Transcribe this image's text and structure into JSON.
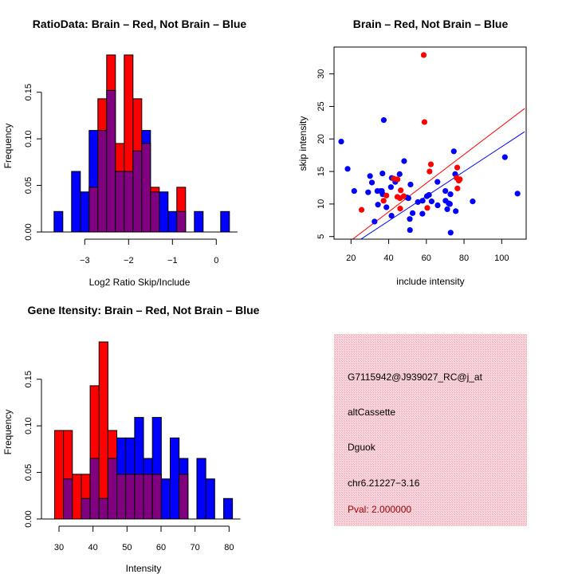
{
  "colors": {
    "red": "#ff0000",
    "blue": "#0000ff",
    "overlap": "#800080",
    "panel": "#f2c4cf",
    "pval": "#a00000"
  },
  "chart_data": [
    {
      "type": "bar",
      "title": "RatioData: Brain – Red, Not Brain – Blue",
      "xlabel": "Log2 Ratio Skip/Include",
      "ylabel": "Frequency",
      "bin_start": -3.7,
      "bin_width": 0.2,
      "xticks": [
        -3,
        -2,
        -1,
        0
      ],
      "xtick_labels": [
        "−3",
        "−2",
        "−1",
        "0"
      ],
      "yticks": [
        0,
        0.05,
        0.1,
        0.15
      ],
      "ytick_labels": [
        "0.00",
        "0.05",
        "0.10",
        "0.15"
      ],
      "series": [
        {
          "name": "Brain",
          "color": "red",
          "values": [
            0,
            0,
            0,
            0,
            0.048,
            0.143,
            0.19,
            0.095,
            0.19,
            0.143,
            0.095,
            0.048,
            0,
            0,
            0.048,
            0,
            0,
            0,
            0,
            0
          ]
        },
        {
          "name": "Not Brain",
          "color": "blue",
          "values": [
            0.022,
            0,
            0.065,
            0.043,
            0.109,
            0.109,
            0.152,
            0.065,
            0.065,
            0.087,
            0.109,
            0.043,
            0.043,
            0.022,
            0.022,
            0,
            0.022,
            0,
            0,
            0.022
          ]
        }
      ]
    },
    {
      "type": "scatter",
      "title": "Brain – Red, Not Brain – Blue",
      "xlabel": "include intensity",
      "ylabel": "skip intensity",
      "xlim": [
        10.7,
        112.2
      ],
      "ylim": [
        4.5,
        33.9
      ],
      "xticks": [
        20,
        40,
        60,
        80,
        100
      ],
      "xtick_labels": [
        "20",
        "40",
        "60",
        "80",
        "100"
      ],
      "yticks": [
        5,
        10,
        15,
        20,
        25,
        30
      ],
      "ytick_labels": [
        "5",
        "10",
        "15",
        "20",
        "25",
        "30"
      ],
      "series": [
        {
          "name": "Not Brain",
          "color": "blue",
          "points": [
            [
              14.8,
              19.6
            ],
            [
              18.2,
              15.4
            ],
            [
              21.7,
              12.0
            ],
            [
              29.1,
              11.8
            ],
            [
              30.1,
              14.3
            ],
            [
              31.1,
              13.3
            ],
            [
              32.5,
              7.3
            ],
            [
              34.0,
              12.0
            ],
            [
              34.3,
              9.9
            ],
            [
              35.7,
              12.0
            ],
            [
              36.4,
              12.0
            ],
            [
              36.7,
              14.7
            ],
            [
              36.8,
              11.5
            ],
            [
              37.4,
              22.9
            ],
            [
              38.8,
              9.5
            ],
            [
              41.2,
              12.6
            ],
            [
              41.6,
              14.0
            ],
            [
              41.5,
              8.2
            ],
            [
              43.5,
              13.4
            ],
            [
              45.8,
              14.6
            ],
            [
              48.2,
              16.6
            ],
            [
              49.8,
              11.0
            ],
            [
              50.5,
              10.9
            ],
            [
              51.2,
              7.7
            ],
            [
              51.3,
              6.0
            ],
            [
              51.6,
              13.0
            ],
            [
              52.7,
              8.6
            ],
            [
              55.5,
              10.3
            ],
            [
              57.9,
              8.5
            ],
            [
              58.0,
              10.5
            ],
            [
              60.3,
              11.2
            ],
            [
              61.4,
              11.4
            ],
            [
              62.8,
              10.4
            ],
            [
              65.9,
              13.4
            ],
            [
              66.0,
              9.8
            ],
            [
              70.1,
              12.0
            ],
            [
              70.2,
              10.5
            ],
            [
              71.1,
              9.2
            ],
            [
              71.9,
              10.1
            ],
            [
              72.5,
              10.0
            ],
            [
              72.8,
              11.5
            ],
            [
              72.9,
              5.6
            ],
            [
              74.6,
              18.1
            ],
            [
              75.3,
              14.6
            ],
            [
              75.6,
              8.9
            ],
            [
              84.6,
              10.4
            ],
            [
              101.7,
              17.2
            ],
            [
              108.4,
              11.6
            ]
          ],
          "fit": {
            "slope": 0.19,
            "intercept": -0.2
          }
        },
        {
          "name": "Brain",
          "color": "red",
          "points": [
            [
              58.6,
              32.9
            ],
            [
              59.0,
              22.6
            ],
            [
              25.6,
              9.1
            ],
            [
              37.3,
              10.5
            ],
            [
              38.8,
              11.3
            ],
            [
              42.7,
              13.9
            ],
            [
              44.7,
              13.8
            ],
            [
              46.4,
              12.1
            ],
            [
              44.6,
              11.1
            ],
            [
              46.0,
              10.9
            ],
            [
              48.0,
              11.2
            ],
            [
              46.1,
              9.3
            ],
            [
              60.5,
              9.4
            ],
            [
              61.7,
              15.0
            ],
            [
              62.4,
              16.1
            ],
            [
              76.4,
              15.6
            ],
            [
              76.1,
              14.0
            ],
            [
              77.8,
              13.8
            ],
            [
              77.2,
              13.6
            ],
            [
              76.5,
              12.4
            ]
          ],
          "fit": {
            "slope": 0.22,
            "intercept": 0.0
          }
        }
      ]
    },
    {
      "type": "bar",
      "title": "Gene Itensity: Brain – Red, Not Brain – Blue",
      "xlabel": "Intensity",
      "ylabel": "Frequency",
      "bin_start": 28.7,
      "bin_width": 2.615,
      "xticks": [
        30,
        40,
        50,
        60,
        70,
        80
      ],
      "xtick_labels": [
        "30",
        "40",
        "50",
        "60",
        "70",
        "80"
      ],
      "yticks": [
        0,
        0.05,
        0.1,
        0.15
      ],
      "ytick_labels": [
        "0.00",
        "0.05",
        "0.10",
        "0.15"
      ],
      "series": [
        {
          "name": "Brain",
          "color": "red",
          "values": [
            0.095,
            0.095,
            0.048,
            0.048,
            0.143,
            0.19,
            0.095,
            0.048,
            0.048,
            0.048,
            0.048,
            0.048,
            0,
            0,
            0.048,
            0,
            0,
            0,
            0,
            0
          ]
        },
        {
          "name": "Not Brain",
          "color": "blue",
          "values": [
            0,
            0.043,
            0,
            0.022,
            0.065,
            0.022,
            0.065,
            0.087,
            0.087,
            0.109,
            0.065,
            0.109,
            0.043,
            0.087,
            0.065,
            0,
            0.065,
            0.043,
            0,
            0.022
          ]
        }
      ]
    }
  ],
  "info_panel": {
    "probe_id": "G7115942@J939027_RC@j_at",
    "event_type": "altCassette",
    "gene": "Dguok",
    "location": "chr6.21227−3.16",
    "pval": "Pval: 2.000000"
  }
}
